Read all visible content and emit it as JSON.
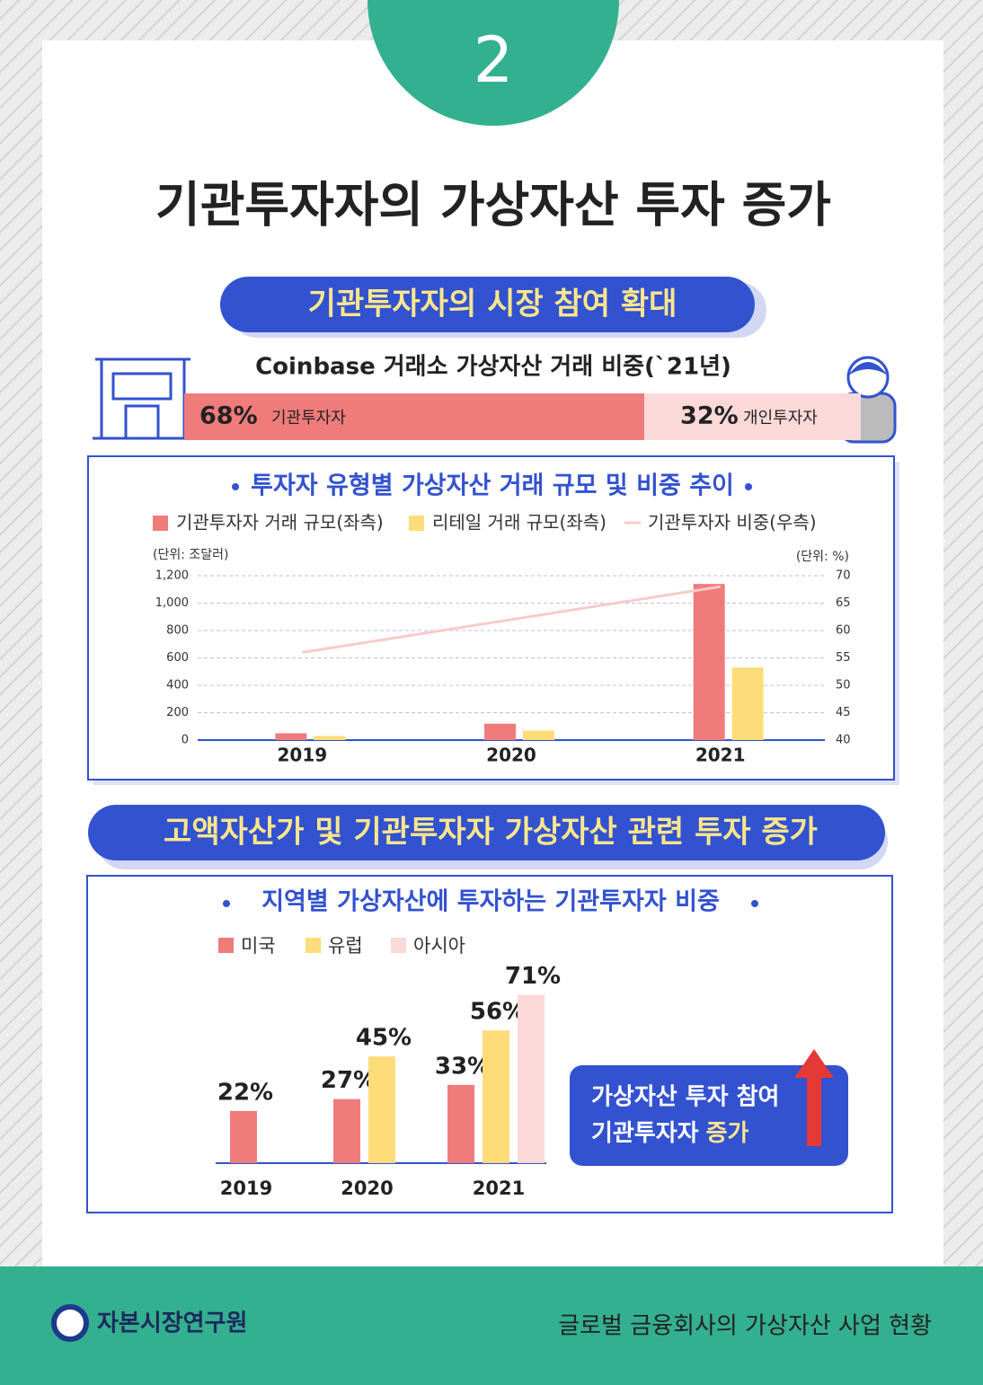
{
  "badge": "2",
  "title": "기관투자자의 가상자산 투자 증가",
  "section1": {
    "title": "기관투자자의 시장 참여 확대"
  },
  "section2": {
    "title": "고액자산가 및 기관투자자 가상자산 관련 투자 증가"
  },
  "chart_data": [
    {
      "type": "stacked-bar",
      "title": "Coinbase 거래소 가상자산 거래 비중(`21년)",
      "series": [
        {
          "name": "기관투자자",
          "color": "#f07b7b",
          "values": [
            68
          ],
          "value_labels": [
            "68%"
          ]
        },
        {
          "name": "개인투자자",
          "color": "#fcd9d9",
          "values": [
            32
          ],
          "value_labels": [
            "32%"
          ]
        }
      ]
    },
    {
      "type": "bar-line",
      "title": "투자자 유형별 가상자산 거래 규모 및 비중 추이",
      "categories": [
        "2019",
        "2020",
        "2021"
      ],
      "ylabel": "(단위: 조달러)",
      "y2label": "(단위: %)",
      "ylim": [
        0,
        1200
      ],
      "yticks": [
        0,
        200,
        400,
        600,
        800,
        {
          "value": 1000,
          "label": "1,000"
        },
        {
          "value": 1200,
          "label": "1,200"
        }
      ],
      "y2lim": [
        40,
        70
      ],
      "y2ticks": [
        40,
        45,
        50,
        55,
        60,
        65,
        70
      ],
      "grid": true,
      "series": [
        {
          "name": "기관투자자 거래 규모(좌측)",
          "color": "#f07b7b",
          "values": [
            50,
            120,
            1140
          ]
        },
        {
          "name": "리테일 거래 규모(좌측)",
          "color": "#fedc7a",
          "values": [
            30,
            70,
            530
          ]
        },
        {
          "name": "기관투자자 비중(우측)",
          "color": "#f9caca",
          "axis": "y2",
          "values": [
            56,
            62,
            68
          ]
        }
      ]
    },
    {
      "type": "bar",
      "title": "지역별 가상자산에 투자하는 기관투자자 비중",
      "categories": [
        "2019",
        "2020",
        "2021"
      ],
      "series": [
        {
          "name": "미국",
          "color": "#f07b7b",
          "values": [
            22,
            27,
            33
          ],
          "value_labels": [
            "22%",
            "27%",
            "33%"
          ]
        },
        {
          "name": "유럽",
          "color": "#fedc7a",
          "values": [
            null,
            45,
            56
          ],
          "value_labels": [
            null,
            "45%",
            "56%"
          ]
        },
        {
          "name": "아시아",
          "color": "#fcd9d9",
          "values": [
            null,
            null,
            71
          ],
          "value_labels": [
            null,
            null,
            "71%"
          ]
        }
      ]
    }
  ],
  "callout": {
    "lines": [
      "가상자산 투자 참여",
      "기관투자자"
    ],
    "highlight": "증가"
  },
  "footer": {
    "org": "자본시장연구원",
    "doc": "글로벌 금융회사의 가상자산 사업 현황"
  }
}
